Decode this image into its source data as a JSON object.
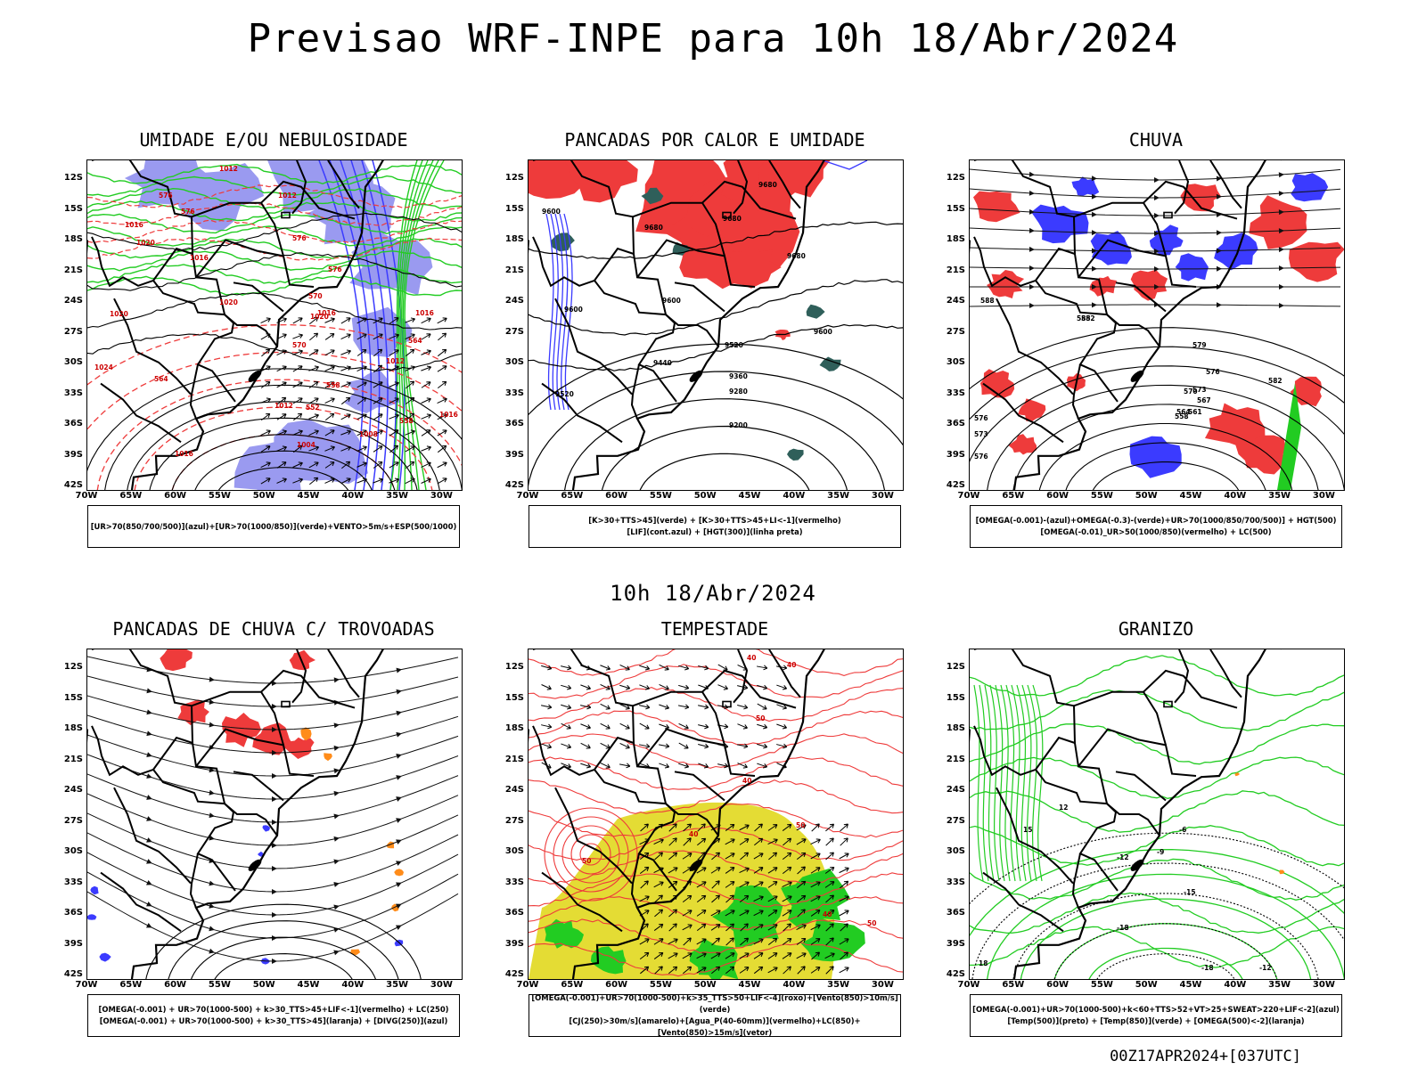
{
  "header": {
    "title": "Previsao WRF-INPE  para 10h 18/Abr/2024"
  },
  "mid_label": "10h 18/Abr/2024",
  "footer": "00Z17APR2024+[037UTC]",
  "axes": {
    "lat_ticks": [
      "12S",
      "15S",
      "18S",
      "21S",
      "24S",
      "27S",
      "30S",
      "33S",
      "36S",
      "39S",
      "42S"
    ],
    "lon_ticks": [
      "70W",
      "65W",
      "60W",
      "55W",
      "50W",
      "45W",
      "40W",
      "35W",
      "30W"
    ]
  },
  "colors": {
    "blue": "#3b3bff",
    "green": "#22cc22",
    "red": "#ee3b3b",
    "purple_fill": "#9a9af0",
    "yellow": "#e4dc34",
    "teal": "#2f5f5a",
    "orange": "#ff8c1a"
  },
  "panels": [
    {
      "id": "umidade",
      "title": "UMIDADE E/OU NEBULOSIDADE",
      "legend": [
        "[UR>70(850/700/500)](azul)+[UR>70(1000/850)](verde)+VENTO>5m/s+ESP(500/1000)"
      ],
      "contour_labels": [
        "1012",
        "1012",
        "1016",
        "1020",
        "1016",
        "1020",
        "1020",
        "1016",
        "1020",
        "1012",
        "1016",
        "1008",
        "1004",
        "1016",
        "1012",
        "1016",
        "1024",
        "576",
        "576",
        "576",
        "576",
        "570",
        "564",
        "558",
        "552",
        "558",
        "564",
        "570"
      ]
    },
    {
      "id": "pancadas_calor",
      "title": "PANCADAS POR CALOR E UMIDADE",
      "legend": [
        "[K>30+TTS>45](verde) + [K>30+TTS>45+LI<-1](vermelho)",
        "[LIF](cont.azul) + [HGT(300)](linha preta)"
      ],
      "contour_labels": [
        "9680",
        "9680",
        "9680",
        "9680",
        "9600",
        "9600",
        "9600",
        "9520",
        "9520",
        "9440",
        "9360",
        "9280",
        "9200",
        "9600"
      ]
    },
    {
      "id": "chuva",
      "title": "CHUVA",
      "legend": [
        "[OMEGA(-0.001)-(azul)+OMEGA(-0.3)-(verde)+UR>70(1000/850/700/500)] + HGT(500)",
        "[OMEGA(-0.01)_UR>50(1000/850)(vermelho) + LC(500)"
      ],
      "contour_labels": [
        "588",
        "585",
        "582",
        "579",
        "576",
        "573",
        "570",
        "567",
        "564",
        "561",
        "558",
        "576",
        "573",
        "576",
        "582"
      ]
    },
    {
      "id": "pancadas_trovoadas",
      "title": "PANCADAS DE CHUVA C/ TROVOADAS",
      "legend": [
        "[OMEGA(-0.001) + UR>70(1000-500) + k>30_TTS>45+LIF<-1](vermelho) + LC(250)",
        "[OMEGA(-0.001) + UR>70(1000-500) + k>30_TTS>45](laranja) + [DIVG(250)](azul)"
      ],
      "contour_labels": []
    },
    {
      "id": "tempestade",
      "title": "TEMPESTADE",
      "legend": [
        "[OMEGA(-0.001)+UR>70(1000-500)+k>35_TTS>50+LIF<-4](roxo)+[Vento(850)>10m/s](verde)",
        "[CJ(250)>30m/s](amarelo)+[Agua_P(40-60mm)](vermelho)+LC(850)+[Vento(850)>15m/s](vetor)"
      ],
      "contour_labels": [
        "40",
        "40",
        "50",
        "40",
        "50",
        "40",
        "50",
        "40",
        "50"
      ]
    },
    {
      "id": "granizo",
      "title": "GRANIZO",
      "legend": [
        "[OMEGA(-0.001)+UR>70(1000-500)+k<60+TTS>52+VT>25+SWEAT>220+LIF<-2](azul)",
        "[Temp(500)](preto) + [Temp(850)](verde) + [OMEGA(500)<-2](laranja)"
      ],
      "contour_labels": [
        "-6",
        "-9",
        "-12",
        "-15",
        "-18",
        "-18",
        "-12",
        "18",
        "15",
        "12"
      ]
    }
  ]
}
